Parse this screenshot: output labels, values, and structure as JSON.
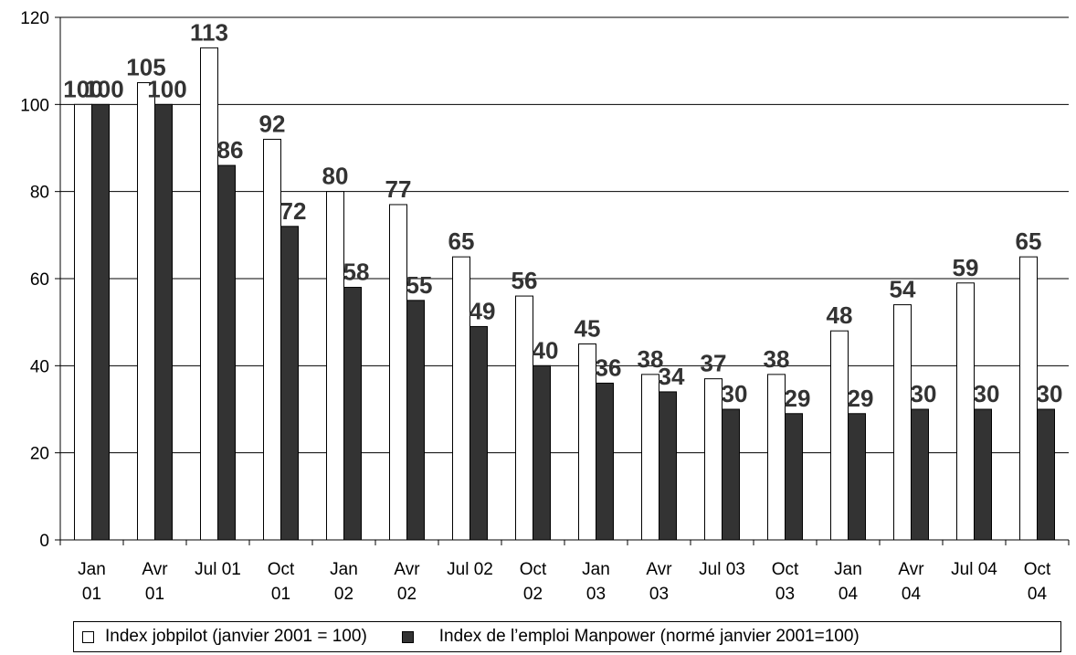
{
  "chart_data": {
    "type": "bar",
    "categories": [
      [
        "Jan",
        "01"
      ],
      [
        "Avr",
        "01"
      ],
      [
        "Jul 01",
        ""
      ],
      [
        "Oct",
        "01"
      ],
      [
        "Jan",
        "02"
      ],
      [
        "Avr",
        "02"
      ],
      [
        "Jul 02",
        ""
      ],
      [
        "Oct",
        "02"
      ],
      [
        "Jan",
        "03"
      ],
      [
        "Avr",
        "03"
      ],
      [
        "Jul 03",
        ""
      ],
      [
        "Oct",
        "03"
      ],
      [
        "Jan",
        "04"
      ],
      [
        "Avr",
        "04"
      ],
      [
        "Jul 04",
        ""
      ],
      [
        "Oct",
        "04"
      ]
    ],
    "series": [
      {
        "name": "Index jobpilot (janvier 2001 = 100)",
        "color": "#ffffff",
        "values": [
          100,
          105,
          113,
          92,
          80,
          77,
          65,
          56,
          45,
          38,
          37,
          38,
          48,
          54,
          59,
          65
        ]
      },
      {
        "name": "Index de l’emploi Manpower (normé janvier 2001=100)",
        "color": "#333333",
        "values": [
          100,
          100,
          86,
          72,
          58,
          55,
          49,
          40,
          36,
          34,
          30,
          29,
          29,
          30,
          30,
          30
        ]
      }
    ],
    "ylim": [
      0,
      120
    ],
    "yticks": [
      0,
      20,
      40,
      60,
      80,
      100,
      120
    ],
    "grid": true,
    "legend": "bottom"
  }
}
